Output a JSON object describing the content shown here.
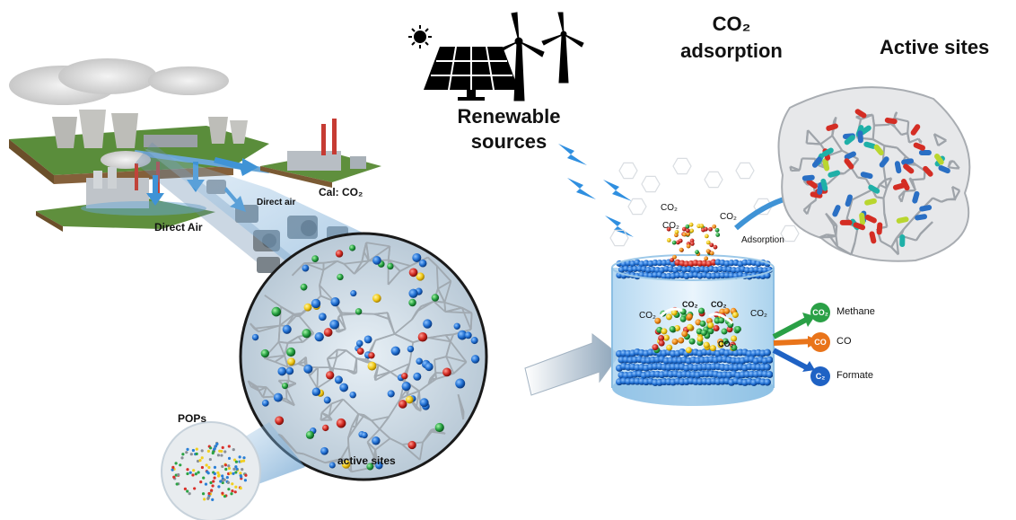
{
  "labels": {
    "renewable_line1": "Renewable",
    "renewable_line2": "sources",
    "co2_adsorption_line1": "CO₂",
    "co2_adsorption_line2": "adsorption",
    "active_sites_title": "Active sites",
    "direct_air_main": "Direct Air",
    "direct_air_small": "Direct air",
    "cal_co2": "Cal: CO₂",
    "pops": "POPs",
    "active_sites_small": "active sites",
    "adsorption": "Adsorption",
    "co2_a": "CO₂",
    "co2_b": "CO₂",
    "co2_c": "CO₂",
    "co2_d": "CO₂",
    "co2_e": "CO₂",
    "co2_f": "CO₂",
    "co2_g": "CO₂",
    "co2_h": "CO₂"
  },
  "products": [
    {
      "badge": "CO₂",
      "name": "Methane",
      "color": "#2aa046"
    },
    {
      "badge": "CO",
      "name": "CO",
      "color": "#e9741a"
    },
    {
      "badge": "C₂",
      "name": "Formate",
      "color": "#1f62c4"
    }
  ],
  "colors": {
    "network": "#b9bcc0",
    "sphere_blue": "#2a7fd6",
    "sphere_red": "#d9302a",
    "sphere_green": "#2ca344",
    "sphere_yellow": "#f1cf1e",
    "cylinder": "#cfe6f6",
    "arrow": "#3f93d6"
  }
}
